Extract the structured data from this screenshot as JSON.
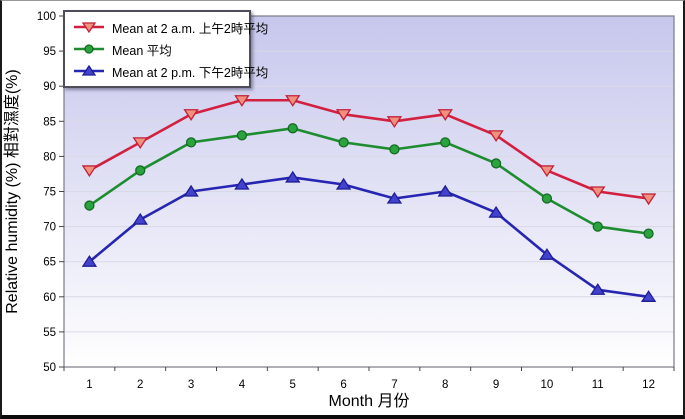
{
  "chart_data": {
    "type": "line",
    "title": "",
    "xlabel": "Month 月份",
    "ylabel": "Relative humidity (%)  相對濕度(%)",
    "x": [
      1,
      2,
      3,
      4,
      5,
      6,
      7,
      8,
      9,
      10,
      11,
      12
    ],
    "x_ticks": [
      "1",
      "2",
      "3",
      "4",
      "5",
      "6",
      "7",
      "8",
      "9",
      "10",
      "11",
      "12"
    ],
    "ylim": [
      50,
      100
    ],
    "y_ticks": [
      50,
      55,
      60,
      65,
      70,
      75,
      80,
      85,
      90,
      95,
      100
    ],
    "grid": "horizontal",
    "legend_position": "top-left",
    "plot_bg_top": "#c7c7ed",
    "plot_bg_bottom": "#ffffff",
    "gridline_color": "#d9d9e6",
    "axis_color": "#7a7a85",
    "tick_color": "#44444c",
    "series": [
      {
        "name": "Mean at 2 a.m. 上午2時平均",
        "marker": "triangle-down",
        "line_color": "#d22040",
        "marker_fill": "#f2907e",
        "marker_stroke": "#c02038",
        "values": [
          78,
          82,
          86,
          88,
          88,
          86,
          85,
          86,
          83,
          78,
          75,
          74
        ]
      },
      {
        "name": "Mean 平均",
        "marker": "circle",
        "line_color": "#1e8c30",
        "marker_fill": "#2aa23d",
        "marker_stroke": "#156b24",
        "values": [
          73,
          78,
          82,
          83,
          84,
          82,
          81,
          82,
          79,
          74,
          70,
          69
        ]
      },
      {
        "name": "Mean at 2 p.m. 下午2時平均",
        "marker": "triangle-up",
        "line_color": "#2626b2",
        "marker_fill": "#4242cf",
        "marker_stroke": "#1d1d94",
        "values": [
          65,
          71,
          75,
          76,
          77,
          76,
          74,
          75,
          72,
          66,
          61,
          60
        ]
      }
    ]
  }
}
